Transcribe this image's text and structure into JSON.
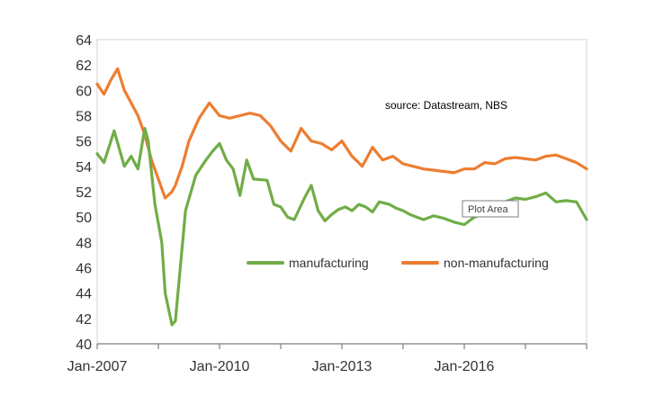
{
  "chart_data": {
    "type": "line",
    "title": "",
    "xlabel": "",
    "ylabel": "",
    "annotation": "source:  Datastream, NBS",
    "tooltip": "Plot Area",
    "x_range": [
      "2007-01",
      "2019-01"
    ],
    "x_tick_labels": [
      "Jan-2007",
      "Jan-2010",
      "Jan-2013",
      "Jan-2016"
    ],
    "x_tick_dates": [
      "2007-01",
      "2010-01",
      "2013-01",
      "2016-01"
    ],
    "minor_tick_dates": [
      "2008-07",
      "2011-07",
      "2014-07",
      "2017-07",
      "2019-01"
    ],
    "ylim": [
      40,
      64
    ],
    "y_ticks": [
      40,
      42,
      44,
      46,
      48,
      50,
      52,
      54,
      56,
      58,
      60,
      62,
      64
    ],
    "y_tick_labels": [
      "40",
      "42",
      "44",
      "46",
      "48",
      "50",
      "52",
      "54",
      "56",
      "58",
      "60",
      "62",
      "64"
    ],
    "grid": false,
    "legend_position": "center",
    "series": [
      {
        "name": "manufacturing",
        "color": "#70ad47",
        "x": [
          "2007-01",
          "2007-03",
          "2007-06",
          "2007-09",
          "2007-11",
          "2008-01",
          "2008-03",
          "2008-04",
          "2008-06",
          "2008-08",
          "2008-09",
          "2008-11",
          "2008-12",
          "2009-03",
          "2009-06",
          "2009-09",
          "2009-11",
          "2010-01",
          "2010-03",
          "2010-05",
          "2010-07",
          "2010-09",
          "2010-11",
          "2011-03",
          "2011-05",
          "2011-07",
          "2011-09",
          "2011-11",
          "2012-02",
          "2012-04",
          "2012-06",
          "2012-08",
          "2012-10",
          "2012-12",
          "2013-02",
          "2013-04",
          "2013-06",
          "2013-08",
          "2013-10",
          "2013-12",
          "2014-03",
          "2014-05",
          "2014-07",
          "2014-09",
          "2014-11",
          "2015-01",
          "2015-04",
          "2015-07",
          "2015-10",
          "2016-01",
          "2016-04",
          "2016-07",
          "2016-10",
          "2017-01",
          "2017-04",
          "2017-07",
          "2017-10",
          "2018-01",
          "2018-04",
          "2018-07",
          "2018-10",
          "2019-01"
        ],
        "values": [
          55.0,
          54.3,
          56.8,
          54.0,
          54.8,
          53.8,
          57.0,
          56.0,
          51.0,
          48.0,
          44.0,
          41.5,
          41.8,
          50.5,
          53.3,
          54.5,
          55.2,
          55.8,
          54.5,
          53.8,
          51.7,
          54.5,
          53.0,
          52.9,
          51.0,
          50.8,
          50.0,
          49.8,
          51.5,
          52.5,
          50.5,
          49.7,
          50.2,
          50.6,
          50.8,
          50.5,
          51.0,
          50.8,
          50.4,
          51.2,
          51.0,
          50.7,
          50.5,
          50.2,
          50.0,
          49.8,
          50.1,
          49.9,
          49.6,
          49.4,
          50.0,
          50.3,
          50.6,
          51.2,
          51.5,
          51.4,
          51.6,
          51.9,
          51.2,
          51.3,
          51.2,
          49.8
        ]
      },
      {
        "name": "non-manufacturing",
        "color": "#ed7d31",
        "x": [
          "2007-01",
          "2007-03",
          "2007-05",
          "2007-07",
          "2007-09",
          "2007-11",
          "2008-01",
          "2008-03",
          "2008-05",
          "2008-07",
          "2008-09",
          "2008-11",
          "2008-12",
          "2009-02",
          "2009-04",
          "2009-07",
          "2009-10",
          "2010-01",
          "2010-04",
          "2010-07",
          "2010-10",
          "2011-01",
          "2011-04",
          "2011-07",
          "2011-10",
          "2012-01",
          "2012-04",
          "2012-07",
          "2012-10",
          "2013-01",
          "2013-04",
          "2013-07",
          "2013-10",
          "2014-01",
          "2014-04",
          "2014-07",
          "2014-10",
          "2015-01",
          "2015-04",
          "2015-07",
          "2015-10",
          "2016-01",
          "2016-04",
          "2016-07",
          "2016-10",
          "2017-01",
          "2017-04",
          "2017-07",
          "2017-10",
          "2018-01",
          "2018-04",
          "2018-07",
          "2018-10",
          "2019-01"
        ],
        "values": [
          60.5,
          59.7,
          60.8,
          61.7,
          60.0,
          59.0,
          58.0,
          56.5,
          54.5,
          53.0,
          51.5,
          52.0,
          52.5,
          54.0,
          56.0,
          57.8,
          59.0,
          58.0,
          57.8,
          58.0,
          58.2,
          58.0,
          57.2,
          56.0,
          55.2,
          57.0,
          56.0,
          55.8,
          55.3,
          56.0,
          54.8,
          54.0,
          55.5,
          54.5,
          54.8,
          54.2,
          54.0,
          53.8,
          53.7,
          53.6,
          53.5,
          53.8,
          53.8,
          54.3,
          54.2,
          54.6,
          54.7,
          54.6,
          54.5,
          54.8,
          54.9,
          54.6,
          54.3,
          53.8
        ]
      }
    ]
  }
}
